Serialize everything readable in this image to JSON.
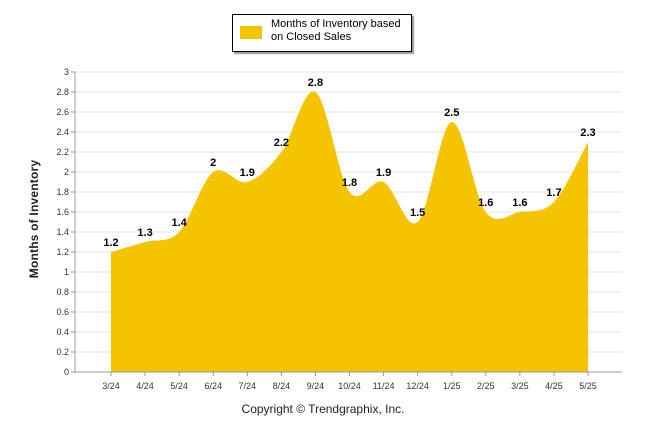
{
  "chart_data": {
    "type": "area",
    "categories": [
      "3/24",
      "4/24",
      "5/24",
      "6/24",
      "7/24",
      "8/24",
      "9/24",
      "10/24",
      "11/24",
      "12/24",
      "1/25",
      "2/25",
      "3/25",
      "4/25",
      "5/25"
    ],
    "series": [
      {
        "name": "Months of Inventory based on Closed Sales",
        "values": [
          1.2,
          1.3,
          1.4,
          2,
          1.9,
          2.2,
          2.8,
          1.8,
          1.9,
          1.5,
          2.5,
          1.6,
          1.6,
          1.7,
          2.3
        ]
      }
    ],
    "data_labels": [
      "1.2",
      "1.3",
      "1.4",
      "2",
      "1.9",
      "2.2",
      "2.8",
      "1.8",
      "1.9",
      "1.5",
      "2.5",
      "1.6",
      "1.6",
      "1.7",
      "2.3"
    ],
    "ylabel": "Months of Inventory",
    "ylim": [
      0,
      3
    ],
    "yticks": [
      "0",
      "0.2",
      "0.4",
      "0.6",
      "0.8",
      "1",
      "1.2",
      "1.4",
      "1.6",
      "1.8",
      "2",
      "2.2",
      "2.4",
      "2.6",
      "2.8",
      "3"
    ],
    "grid": true,
    "legend_position": "top",
    "series_color": "#F5C400"
  },
  "footer": {
    "copyright": "Copyright © Trendgraphix, Inc."
  }
}
